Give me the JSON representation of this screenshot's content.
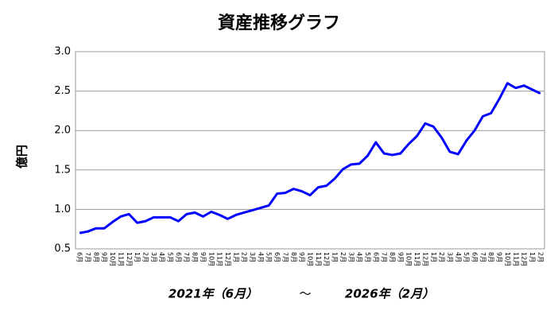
{
  "chart_data": {
    "type": "line",
    "title": "資産推移グラフ",
    "ylabel": "億円",
    "categories": [
      "6月",
      "7月",
      "8月",
      "9月",
      "10月",
      "11月",
      "12月",
      "1月",
      "2月",
      "3月",
      "4月",
      "5月",
      "6月",
      "7月",
      "8月",
      "9月",
      "10月",
      "11月",
      "12月",
      "1月",
      "2月",
      "3月",
      "4月",
      "5月",
      "6月",
      "7月",
      "8月",
      "9月",
      "10月",
      "11月",
      "12月",
      "1月",
      "2月",
      "3月",
      "4月",
      "5月",
      "6月",
      "7月",
      "8月",
      "9月",
      "10月",
      "11月",
      "12月",
      "1月",
      "2月",
      "3月",
      "4月",
      "5月",
      "6月",
      "7月",
      "8月",
      "9月",
      "10月",
      "11月",
      "12月",
      "1月",
      "2月"
    ],
    "values": [
      0.7,
      0.72,
      0.76,
      0.76,
      0.84,
      0.91,
      0.94,
      0.83,
      0.85,
      0.9,
      0.9,
      0.9,
      0.85,
      0.94,
      0.96,
      0.91,
      0.97,
      0.93,
      0.88,
      0.93,
      0.96,
      0.99,
      1.02,
      1.05,
      1.2,
      1.21,
      1.26,
      1.23,
      1.18,
      1.28,
      1.3,
      1.39,
      1.51,
      1.57,
      1.58,
      1.68,
      1.85,
      1.71,
      1.69,
      1.71,
      1.83,
      1.93,
      2.09,
      2.05,
      1.91,
      1.73,
      1.7,
      1.87,
      2.0,
      2.18,
      2.22,
      2.4,
      2.6,
      2.54,
      2.57,
      2.52,
      2.47
    ],
    "color": "#0000ff",
    "ylim": [
      0.5,
      3.0
    ],
    "yticks": [
      0.5,
      {
        "value": 1.0,
        "label": "1.0"
      },
      1.5,
      {
        "value": 2.0,
        "label": "2.0"
      },
      2.5,
      {
        "value": 3.0,
        "label": "3.0"
      }
    ],
    "grid": true,
    "annotations": [
      "2021年（6月）",
      "～",
      "2026年（2月）"
    ]
  }
}
